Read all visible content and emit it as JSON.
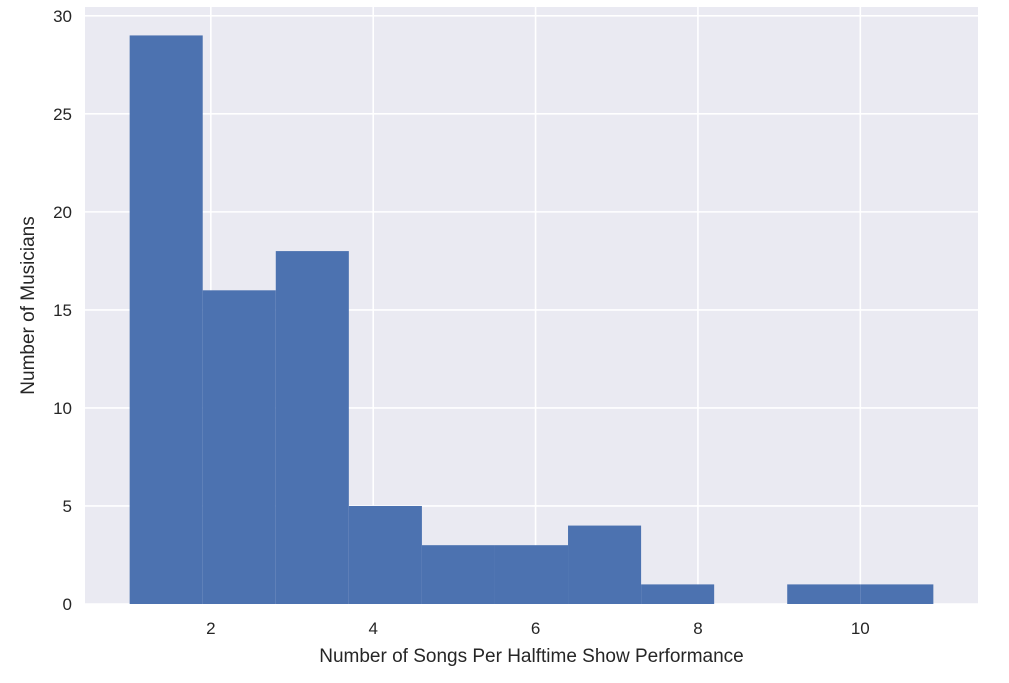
{
  "chart_data": {
    "type": "bar",
    "histogram": true,
    "title": "",
    "xlabel": "Number of Songs Per Halftime Show Performance",
    "ylabel": "Number of Musicians",
    "bin_edges": [
      1,
      1.9,
      2.8,
      3.7,
      4.6,
      5.5,
      6.4,
      7.3,
      8.2,
      9.1,
      10.0,
      10.9
    ],
    "values": [
      29,
      16,
      18,
      5,
      3,
      3,
      4,
      1,
      0,
      1,
      1
    ],
    "xlim": [
      0.45,
      11.45
    ],
    "ylim": [
      0,
      30.45
    ],
    "x_ticks": [
      2,
      4,
      6,
      8,
      10
    ],
    "x_tick_labels": [
      "2",
      "4",
      "6",
      "8",
      "10"
    ],
    "y_ticks": [
      0,
      5,
      10,
      15,
      20,
      25,
      30
    ],
    "y_tick_labels": [
      "0",
      "5",
      "10",
      "15",
      "20",
      "25",
      "30"
    ],
    "grid": true,
    "legend": "none",
    "colors": {
      "bar": "#4c72b0",
      "plot_background": "#eaeaf2",
      "grid": "#ffffff",
      "text": "#262626"
    }
  }
}
